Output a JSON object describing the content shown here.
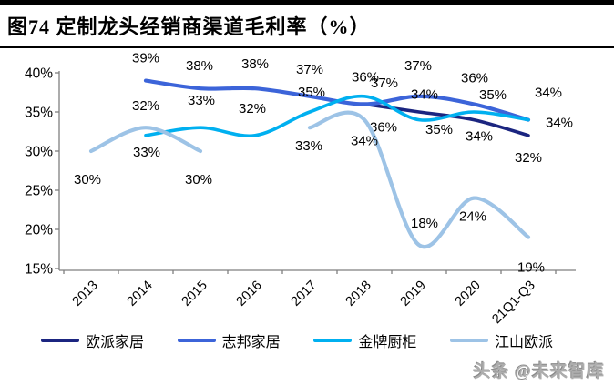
{
  "header": {
    "title": "图74 定制龙头经销商渠道毛利率（%）"
  },
  "watermark": "头条 @未来智库",
  "chart_data": {
    "type": "line",
    "style": "smooth",
    "title": "定制龙头经销商渠道毛利率（%）",
    "categories": [
      "2013",
      "2014",
      "2015",
      "2016",
      "2017",
      "2018",
      "2019",
      "2020",
      "21Q1-Q3"
    ],
    "y_ticks": [
      "40%",
      "35%",
      "30%",
      "25%",
      "20%",
      "15%"
    ],
    "ylim": [
      15,
      40
    ],
    "grid": false,
    "legend_position": "bottom",
    "label_suffix": "%",
    "axis_color": "#7f7f7f",
    "series": [
      {
        "name": "欧派家居",
        "color": "#1B2580",
        "values": [
          null,
          null,
          null,
          null,
          null,
          36,
          35,
          34,
          32
        ]
      },
      {
        "name": "志邦家居",
        "color": "#3C64D9",
        "values": [
          null,
          39,
          38,
          38,
          37,
          36,
          37,
          36,
          34
        ]
      },
      {
        "name": "金牌厨柜",
        "color": "#00B0F0",
        "values": [
          null,
          32,
          33,
          32,
          35,
          37,
          34,
          35,
          34
        ]
      },
      {
        "name": "江山欧派",
        "color": "#9DC3E6",
        "values": [
          30,
          33,
          30,
          null,
          33,
          34,
          18,
          24,
          19
        ]
      }
    ]
  }
}
